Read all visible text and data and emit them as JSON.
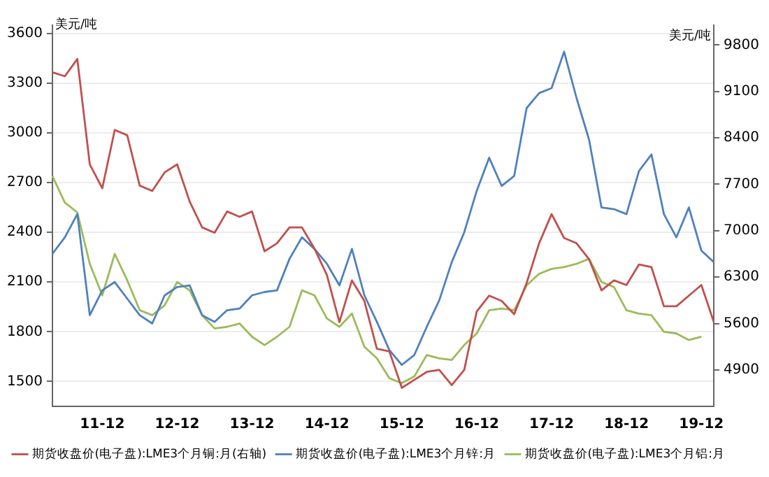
{
  "chart_data": {
    "type": "line",
    "ylabel": "美元/吨",
    "y2label": "美元/吨",
    "categories": [
      null,
      null,
      null,
      null,
      "11-12",
      null,
      null,
      null,
      null,
      null,
      "12-12",
      null,
      null,
      null,
      null,
      null,
      "13-12",
      null,
      null,
      null,
      null,
      null,
      "14-12",
      null,
      null,
      null,
      null,
      null,
      "15-12",
      null,
      null,
      null,
      null,
      null,
      "16-12",
      null,
      null,
      null,
      null,
      null,
      "17-12",
      null,
      null,
      null,
      null,
      null,
      "18-12",
      null,
      null,
      null,
      null,
      null,
      "19-12",
      null
    ],
    "series": [
      {
        "name": "期货收盘价(电子盘):LME3个月铜:月(右轴)",
        "color": "#c0504d",
        "axis": "y2",
        "values": [
          9390,
          9330,
          9590,
          8000,
          7640,
          8520,
          8440,
          7680,
          7600,
          7880,
          8000,
          7440,
          7050,
          6970,
          7290,
          7210,
          7290,
          6690,
          6810,
          7050,
          7050,
          6730,
          6330,
          5620,
          6250,
          5940,
          5220,
          5180,
          4630,
          4750,
          4870,
          4900,
          4670,
          4900,
          5780,
          6020,
          5940,
          5740,
          6210,
          6810,
          7250,
          6890,
          6810,
          6570,
          6100,
          6250,
          6180,
          6490,
          6450,
          5860,
          5860,
          6020,
          6180,
          5620
        ]
      },
      {
        "name": "期货收盘价(电子盘):LME3个月锌:月",
        "color": "#4f81bd",
        "values": [
          2270,
          2370,
          2510,
          1900,
          2050,
          2100,
          2000,
          1900,
          1850,
          2020,
          2070,
          2080,
          1900,
          1860,
          1930,
          1940,
          2020,
          2040,
          2050,
          2240,
          2370,
          2300,
          2210,
          2080,
          2300,
          2020,
          1860,
          1690,
          1600,
          1660,
          1830,
          1990,
          2220,
          2400,
          2650,
          2850,
          2680,
          2740,
          3150,
          3240,
          3270,
          3490,
          3210,
          2960,
          2550,
          2540,
          2510,
          2770,
          2870,
          2510,
          2370,
          2550,
          2290,
          2220
        ]
      },
      {
        "name": "期货收盘价(电子盘):LME3个月铝:月",
        "color": "#9bbb59",
        "values": [
          2740,
          2580,
          2520,
          2210,
          2020,
          2270,
          2110,
          1930,
          1900,
          1960,
          2100,
          2050,
          1900,
          1820,
          1830,
          1850,
          1770,
          1720,
          1770,
          1830,
          2050,
          2020,
          1880,
          1830,
          1910,
          1710,
          1640,
          1520,
          1490,
          1530,
          1660,
          1640,
          1630,
          1720,
          1790,
          1930,
          1940,
          1930,
          2080,
          2150,
          2180,
          2190,
          2210,
          2240,
          2100,
          2070,
          1930,
          1910,
          1900,
          1800,
          1790,
          1750,
          1770,
          null
        ]
      }
    ],
    "ylim": [
      1350,
      3650
    ],
    "yticks": [
      1500,
      1800,
      2100,
      2400,
      2700,
      3000,
      3300,
      3600
    ],
    "y2lim": [
      4350,
      10100
    ],
    "y2ticks": [
      4900,
      5600,
      6300,
      7000,
      7700,
      8400,
      9100,
      9800
    ],
    "grid": "y",
    "legend": "bottom",
    "marker": "none",
    "line_style": "solid"
  }
}
